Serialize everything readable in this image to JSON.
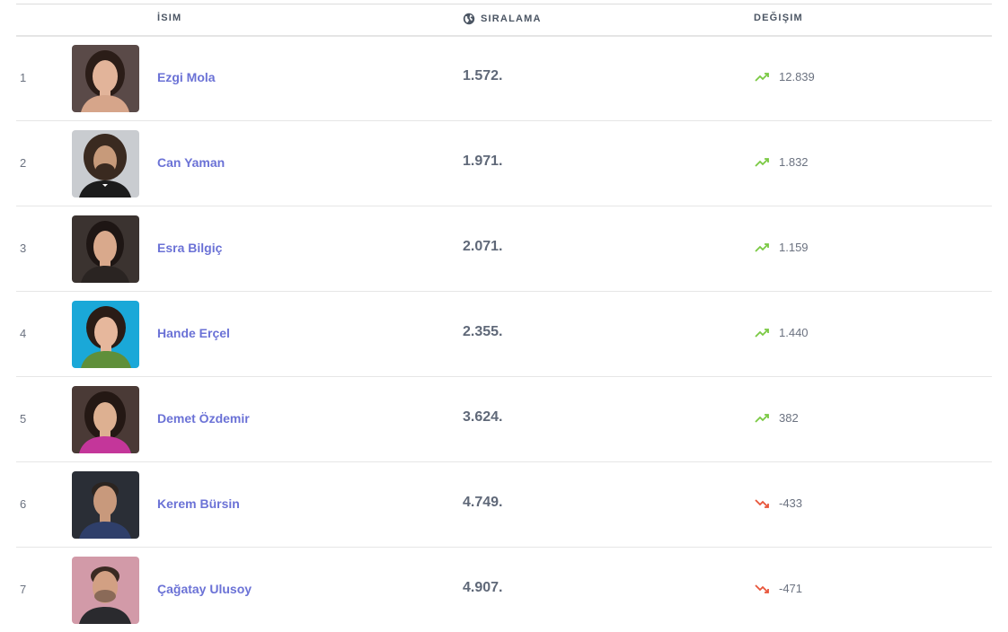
{
  "header": {
    "name_label": "İSIM",
    "rank_label": "SIRALAMA",
    "rank_icon": "globe-icon",
    "change_label": "DEĞIŞIM"
  },
  "colors": {
    "name_link": "#6b72d6",
    "trend_up": "#7ac943",
    "trend_down": "#e8553a"
  },
  "rows": [
    {
      "index": "1",
      "name": "Ezgi Mola",
      "rank": "1.572.",
      "change": "12.839",
      "trend": "up",
      "avatar_bg": "#5a4a48",
      "hair": "#2b1d18",
      "skin": "#e2b49a",
      "shirt": "#d6a58a"
    },
    {
      "index": "2",
      "name": "Can Yaman",
      "rank": "1.971.",
      "change": "1.832",
      "trend": "up",
      "avatar_bg": "#c9ccd0",
      "hair": "#3a2a20",
      "skin": "#c79a7a",
      "shirt": "#1c1c1c"
    },
    {
      "index": "3",
      "name": "Esra Bilgiç",
      "rank": "2.071.",
      "change": "1.159",
      "trend": "up",
      "avatar_bg": "#3b3330",
      "hair": "#1e1614",
      "skin": "#d9a98c",
      "shirt": "#2a2422"
    },
    {
      "index": "4",
      "name": "Hande Erçel",
      "rank": "2.355.",
      "change": "1.440",
      "trend": "up",
      "avatar_bg": "#1aa8d8",
      "hair": "#2a1c16",
      "skin": "#e6b79c",
      "shirt": "#5f8f3a"
    },
    {
      "index": "5",
      "name": "Demet Özdemir",
      "rank": "3.624.",
      "change": "382",
      "trend": "up",
      "avatar_bg": "#4a3a36",
      "hair": "#241814",
      "skin": "#ddb091",
      "shirt": "#c4369a"
    },
    {
      "index": "6",
      "name": "Kerem Bürsin",
      "rank": "4.749.",
      "change": "-433",
      "trend": "down",
      "avatar_bg": "#2a2e36",
      "hair": "#2b2420",
      "skin": "#c8997c",
      "shirt": "#2f3f6a"
    },
    {
      "index": "7",
      "name": "Çağatay Ulusoy",
      "rank": "4.907.",
      "change": "-471",
      "trend": "down",
      "avatar_bg": "#d29aa8",
      "hair": "#3a2a22",
      "skin": "#d2a083",
      "shirt": "#2a2a2e"
    }
  ]
}
